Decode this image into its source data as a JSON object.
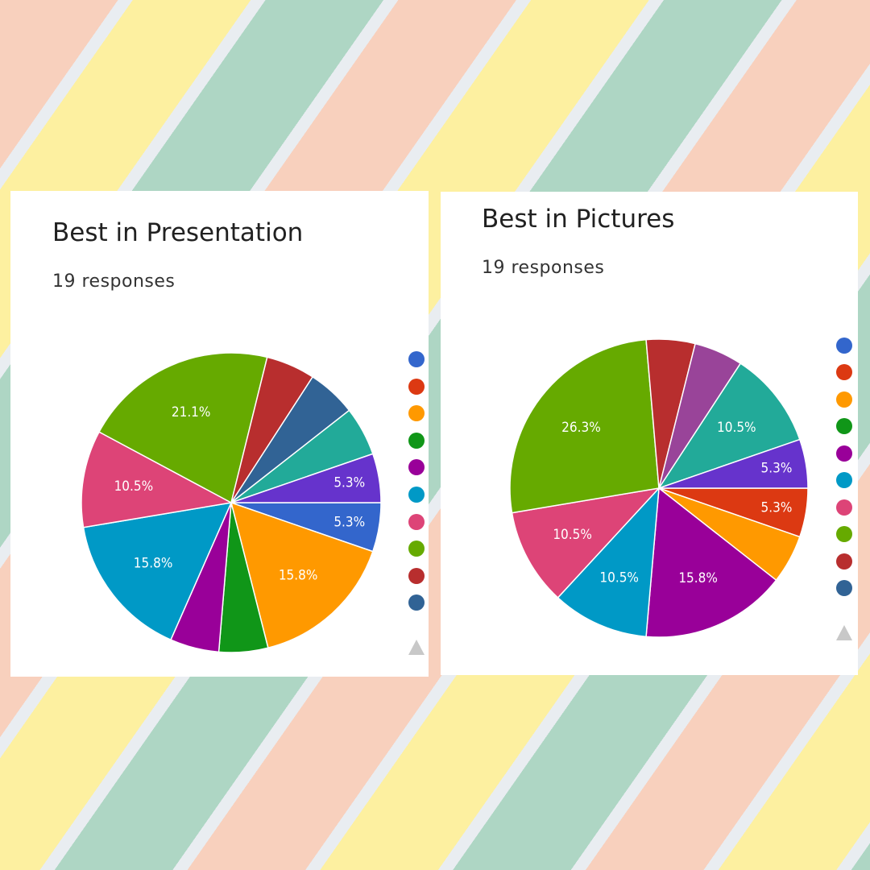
{
  "chart_data": [
    {
      "type": "pie",
      "title": "Best in Presentation",
      "subtitle": "19 responses",
      "values": [
        5.3,
        15.8,
        5.3,
        5.3,
        15.8,
        10.5,
        21.1,
        5.3,
        5.3,
        5.3,
        5.3
      ],
      "value_labels": [
        "5.3%",
        "15.8%",
        null,
        null,
        "15.8%",
        "10.5%",
        "21.1%",
        null,
        null,
        null,
        "5.3%"
      ],
      "colors": [
        "#3366cc",
        "#ff9900",
        "#109618",
        "#990099",
        "#0099c6",
        "#dd4477",
        "#66aa00",
        "#b82e2e",
        "#316395",
        "#22aa99",
        "#6633cc"
      ]
    },
    {
      "type": "pie",
      "title": "Best in Pictures",
      "subtitle": "19 responses",
      "values": [
        5.3,
        5.3,
        15.8,
        10.5,
        10.5,
        26.3,
        5.3,
        5.3,
        10.5,
        5.3
      ],
      "value_labels": [
        "5.3%",
        null,
        "15.8%",
        "10.5%",
        "10.5%",
        "26.3%",
        null,
        null,
        "10.5%",
        "5.3%"
      ],
      "colors": [
        "#dc3912",
        "#ff9900",
        "#990099",
        "#0099c6",
        "#dd4477",
        "#66aa00",
        "#b82e2e",
        "#994499",
        "#22aa99",
        "#6633cc"
      ]
    }
  ]
}
